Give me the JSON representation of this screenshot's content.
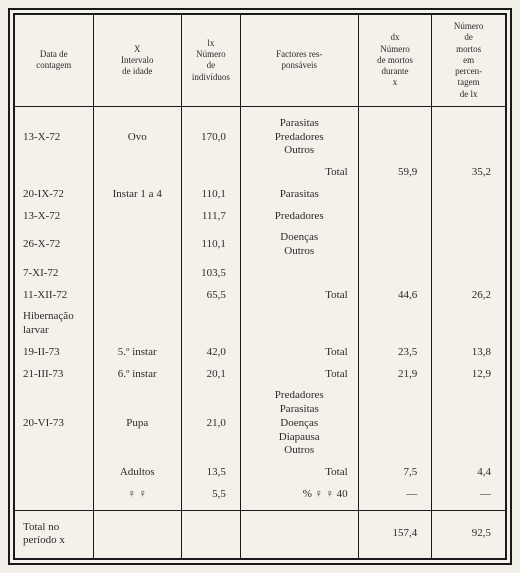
{
  "headers": {
    "date": "Data de\ncontagem",
    "interval": "X\nIntervalo\nde idade",
    "lx": "lx\nNúmero\nde\nindivíduos",
    "factors": "Factores res-\nponsáveis",
    "dx": "dx\nNúmero\nde mortos\ndurante\nx",
    "pct": "Número\nde\nmortos\nem\npercen-\ntagem\nde lx"
  },
  "rows": [
    {
      "date": "13-X-72",
      "interval": "Ovo",
      "lx": "170,0",
      "factors": "Parasitas\nPredadores\nOutros",
      "dx": "",
      "pct": ""
    },
    {
      "date": "",
      "interval": "",
      "lx": "",
      "factors": "Total",
      "factors_align": "right",
      "dx": "59,9",
      "pct": "35,2"
    },
    {
      "date": "20-IX-72",
      "interval": "Instar 1 a 4",
      "lx": "110,1",
      "factors": "Parasitas",
      "dx": "",
      "pct": ""
    },
    {
      "date": "13-X-72",
      "interval": "",
      "lx": "111,7",
      "factors": "Predadores",
      "dx": "",
      "pct": ""
    },
    {
      "date": "26-X-72",
      "interval": "",
      "lx": "110,1",
      "factors": "Doenças\nOutros",
      "dx": "",
      "pct": ""
    },
    {
      "date": "7-XI-72",
      "interval": "",
      "lx": "103,5",
      "factors": "",
      "dx": "",
      "pct": ""
    },
    {
      "date": "11-XII-72",
      "interval": "",
      "lx": "65,5",
      "factors": "Total",
      "factors_align": "right",
      "dx": "44,6",
      "pct": "26,2"
    },
    {
      "date": "Hibernação\nlarvar",
      "interval": "",
      "lx": "",
      "factors": "",
      "dx": "",
      "pct": ""
    },
    {
      "date": "19-II-73",
      "interval": "5.º instar",
      "lx": "42,0",
      "factors": "Total",
      "factors_align": "right",
      "dx": "23,5",
      "pct": "13,8"
    },
    {
      "date": "21-III-73",
      "interval": "6.º instar",
      "lx": "20,1",
      "factors": "Total",
      "factors_align": "right",
      "dx": "21,9",
      "pct": "12,9"
    },
    {
      "date": "20-VI-73",
      "interval": "Pupa",
      "lx": "21,0",
      "factors": "Predadores\nParasitas\nDoenças\nDiapausa\nOutros",
      "dx": "",
      "pct": ""
    },
    {
      "date": "",
      "interval": "Adultos",
      "lx": "13,5",
      "factors": "Total",
      "factors_align": "right",
      "dx": "7,5",
      "pct": "4,4"
    },
    {
      "date": "",
      "interval": "♀ ♀",
      "lx": "5,5",
      "factors": "% ♀ ♀   40",
      "factors_align": "right",
      "dx": "—",
      "pct": "—"
    }
  ],
  "footer": {
    "label": "Total no\nperíodo x",
    "dx": "157,4",
    "pct": "92,5"
  }
}
